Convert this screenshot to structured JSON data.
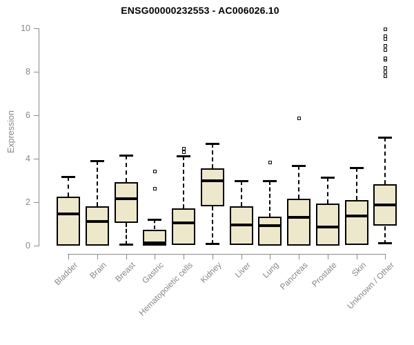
{
  "title": "ENSG00000232553 - AC006026.10",
  "chart_data": {
    "type": "boxplot",
    "title": "ENSG00000232553 - AC006026.10",
    "xlabel": "",
    "ylabel": "Expression",
    "ylim": [
      0,
      10
    ],
    "yticks": [
      0,
      2,
      4,
      6,
      8,
      10
    ],
    "grid": false,
    "legend": "none",
    "colors": {
      "box_fill": "#EDE7CB",
      "box_border": "#000000",
      "median": "#000000",
      "whisker": "#000000",
      "outlier_border": "#000000",
      "axis": "#8A8A8A",
      "tick_label": "#878787",
      "title": "#000000",
      "background": "#FFFFFF"
    },
    "categories": [
      "Bladder",
      "Brain",
      "Breast",
      "Gastric",
      "Hematopoietic cells",
      "Kidney",
      "Liver",
      "Lung",
      "Pancreas",
      "Prostate",
      "Skin",
      "Unknown / Other"
    ],
    "series": [
      {
        "category": "Bladder",
        "whisker_low": 0,
        "q1": 0,
        "median": 1.45,
        "q3": 2.25,
        "whisker_high": 3.17,
        "outliers": []
      },
      {
        "category": "Brain",
        "whisker_low": 0,
        "q1": 0,
        "median": 1.12,
        "q3": 1.8,
        "whisker_high": 3.91,
        "outliers": []
      },
      {
        "category": "Breast",
        "whisker_low": 0.03,
        "q1": 1.06,
        "median": 2.16,
        "q3": 2.92,
        "whisker_high": 4.16,
        "outliers": []
      },
      {
        "category": "Gastric",
        "whisker_low": 0,
        "q1": 0,
        "median": 0.12,
        "q3": 0.74,
        "whisker_high": 1.2,
        "outliers": [
          2.62,
          3.42
        ]
      },
      {
        "category": "Hematopoietic cells",
        "whisker_low": 0.03,
        "q1": 0.03,
        "median": 1.06,
        "q3": 1.72,
        "whisker_high": 4.13,
        "outliers": [
          4.3,
          4.45
        ]
      },
      {
        "category": "Kidney",
        "whisker_low": 0.05,
        "q1": 1.81,
        "median": 2.99,
        "q3": 3.55,
        "whisker_high": 4.69,
        "outliers": []
      },
      {
        "category": "Liver",
        "whisker_low": 0.02,
        "q1": 0.02,
        "median": 0.95,
        "q3": 1.81,
        "whisker_high": 2.99,
        "outliers": []
      },
      {
        "category": "Lung",
        "whisker_low": 0,
        "q1": 0,
        "median": 0.93,
        "q3": 1.32,
        "whisker_high": 2.99,
        "outliers": [
          3.81
        ]
      },
      {
        "category": "Pancreas",
        "whisker_low": 0,
        "q1": 0,
        "median": 1.3,
        "q3": 2.15,
        "whisker_high": 3.68,
        "outliers": [
          5.87
        ]
      },
      {
        "category": "Prostate",
        "whisker_low": 0,
        "q1": 0,
        "median": 0.85,
        "q3": 1.94,
        "whisker_high": 3.15,
        "outliers": []
      },
      {
        "category": "Skin",
        "whisker_low": 0.05,
        "q1": 0.05,
        "median": 1.37,
        "q3": 2.1,
        "whisker_high": 3.6,
        "outliers": []
      },
      {
        "category": "Unknown / Other",
        "whisker_low": 0.08,
        "q1": 0.9,
        "median": 1.88,
        "q3": 2.82,
        "whisker_high": 4.97,
        "outliers": [
          7.8,
          7.98,
          8.18,
          8.56,
          8.62,
          9.0,
          9.2,
          9.5,
          9.62,
          9.95
        ]
      }
    ]
  }
}
